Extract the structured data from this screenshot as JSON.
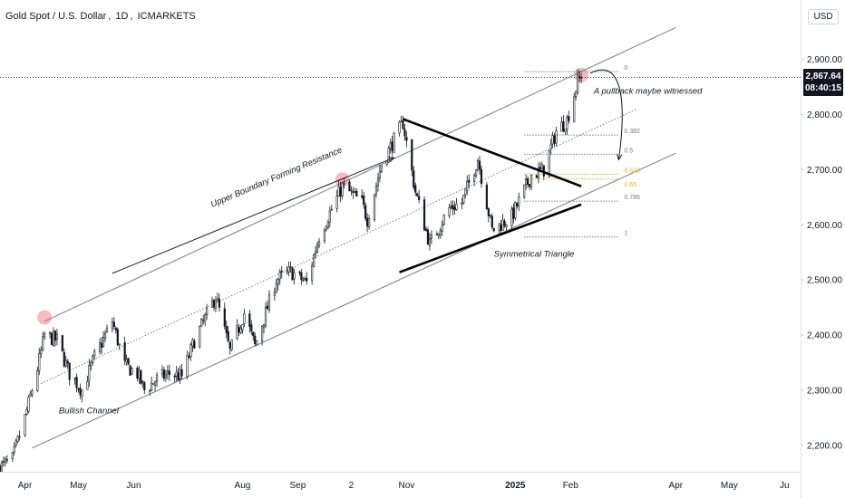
{
  "header": {
    "instrument": "Gold Spot / U.S. Dollar",
    "interval": "1D",
    "broker": "ICMARKETS"
  },
  "price_axis": {
    "currency": "USD",
    "last_price": "2,867.64",
    "countdown": "08:40:15"
  },
  "colors": {
    "candle": "#131722",
    "channel": "#787b86",
    "triangle": "#000000",
    "fib": "#787b86",
    "fib_golden": "#f5a623",
    "highlight": "#f4a3a8"
  },
  "chart_data": {
    "type": "candlestick",
    "title": "",
    "x_range": [
      "2024-03-18",
      "2025-06-10"
    ],
    "y_range": [
      2152,
      3008
    ],
    "y_ticks": [
      2200,
      2300,
      2400,
      2500,
      2600,
      2700,
      2800,
      2900
    ],
    "y_tick_labels": [
      "2,200.00",
      "2,300.00",
      "2,400.00",
      "2,500.00",
      "2,600.00",
      "2,700.00",
      "2,800.00",
      "2,900.00"
    ],
    "x_ticks": [
      {
        "date": "2024-04-01",
        "label": "Apr"
      },
      {
        "date": "2024-05-01",
        "label": "May"
      },
      {
        "date": "2024-06-01",
        "label": "Jun"
      },
      {
        "date": "2024-08-01",
        "label": "Aug"
      },
      {
        "date": "2024-09-01",
        "label": "Sep"
      },
      {
        "date": "2024-10-01",
        "label": "2"
      },
      {
        "date": "2024-11-01",
        "label": "Nov"
      },
      {
        "date": "2025-01-01",
        "label": "2025"
      },
      {
        "date": "2025-02-01",
        "label": "Feb"
      },
      {
        "date": "2025-04-01",
        "label": "Apr"
      },
      {
        "date": "2025-05-01",
        "label": "May"
      },
      {
        "date": "2025-06-01",
        "label": "Ju"
      }
    ],
    "price_path": [
      [
        "2024-03-18",
        2160
      ],
      [
        "2024-03-25",
        2175
      ],
      [
        "2024-04-01",
        2250
      ],
      [
        "2024-04-08",
        2340
      ],
      [
        "2024-04-12",
        2400
      ],
      [
        "2024-04-19",
        2390
      ],
      [
        "2024-04-26",
        2330
      ],
      [
        "2024-05-03",
        2300
      ],
      [
        "2024-05-10",
        2360
      ],
      [
        "2024-05-20",
        2425
      ],
      [
        "2024-05-27",
        2345
      ],
      [
        "2024-06-03",
        2330
      ],
      [
        "2024-06-07",
        2300
      ],
      [
        "2024-06-14",
        2320
      ],
      [
        "2024-06-21",
        2330
      ],
      [
        "2024-06-28",
        2325
      ],
      [
        "2024-07-05",
        2390
      ],
      [
        "2024-07-17",
        2470
      ],
      [
        "2024-07-25",
        2370
      ],
      [
        "2024-08-02",
        2440
      ],
      [
        "2024-08-08",
        2380
      ],
      [
        "2024-08-20",
        2500
      ],
      [
        "2024-08-28",
        2515
      ],
      [
        "2024-09-06",
        2495
      ],
      [
        "2024-09-13",
        2580
      ],
      [
        "2024-09-26",
        2670
      ],
      [
        "2024-10-07",
        2640
      ],
      [
        "2024-10-10",
        2610
      ],
      [
        "2024-10-18",
        2710
      ],
      [
        "2024-10-30",
        2785
      ],
      [
        "2024-11-06",
        2660
      ],
      [
        "2024-11-14",
        2565
      ],
      [
        "2024-11-25",
        2630
      ],
      [
        "2024-12-02",
        2640
      ],
      [
        "2024-12-11",
        2720
      ],
      [
        "2024-12-19",
        2590
      ],
      [
        "2024-12-30",
        2615
      ],
      [
        "2025-01-10",
        2690
      ],
      [
        "2025-01-17",
        2700
      ],
      [
        "2025-01-24",
        2770
      ],
      [
        "2025-01-30",
        2790
      ],
      [
        "2025-02-05",
        2860
      ],
      [
        "2025-02-07",
        2867.64
      ]
    ],
    "last_price": 2867.64,
    "annotations": [
      {
        "kind": "channel-upper",
        "from": [
          "2024-04-12",
          2425
        ],
        "to": [
          "2025-04-01",
          2958
        ]
      },
      {
        "kind": "channel-mid",
        "from": [
          "2024-04-10",
          2312
        ],
        "to": [
          "2025-03-10",
          2810
        ]
      },
      {
        "kind": "channel-lower",
        "from": [
          "2024-04-05",
          2195
        ],
        "to": [
          "2025-04-01",
          2730
        ]
      },
      {
        "kind": "triangle-upper",
        "from": [
          "2024-10-30",
          2792
        ],
        "to": [
          "2025-02-07",
          2670
        ]
      },
      {
        "kind": "triangle-lower",
        "from": [
          "2024-10-28",
          2514
        ],
        "to": [
          "2025-02-07",
          2637
        ]
      },
      {
        "kind": "arrow",
        "from": [
          "2024-05-20",
          2512
        ],
        "to": [
          "2024-10-25",
          2722
        ]
      }
    ],
    "highlights": [
      {
        "date": "2024-04-12",
        "price": 2432
      },
      {
        "date": "2024-09-26",
        "price": 2682
      },
      {
        "date": "2025-02-07",
        "price": 2872
      }
    ],
    "fibonacci": {
      "start_date": "2025-01-06",
      "end_date": "2025-02-28",
      "levels": [
        {
          "ratio": "0",
          "price": 2878
        },
        {
          "ratio": "0.382",
          "price": 2763
        },
        {
          "ratio": "0.5",
          "price": 2728
        },
        {
          "ratio": "0.618",
          "price": 2692
        },
        {
          "ratio": "0.65",
          "price": 2683
        },
        {
          "ratio": "0.786",
          "price": 2643
        },
        {
          "ratio": "1",
          "price": 2578
        }
      ]
    },
    "labels": [
      {
        "text": "Upper Boundary Forming Resistance",
        "date": "2024-07-15",
        "price": 2632,
        "angle": -23
      },
      {
        "text": "Symmetrical Triangle",
        "date": "2024-12-20",
        "price": 2542,
        "angle": 0
      },
      {
        "text": "A pullback maybe witnessed",
        "date": "2025-02-14",
        "price": 2838,
        "angle": 0
      },
      {
        "text": "Bullish Channel",
        "date": "2024-04-20",
        "price": 2258,
        "angle": 0
      }
    ]
  }
}
